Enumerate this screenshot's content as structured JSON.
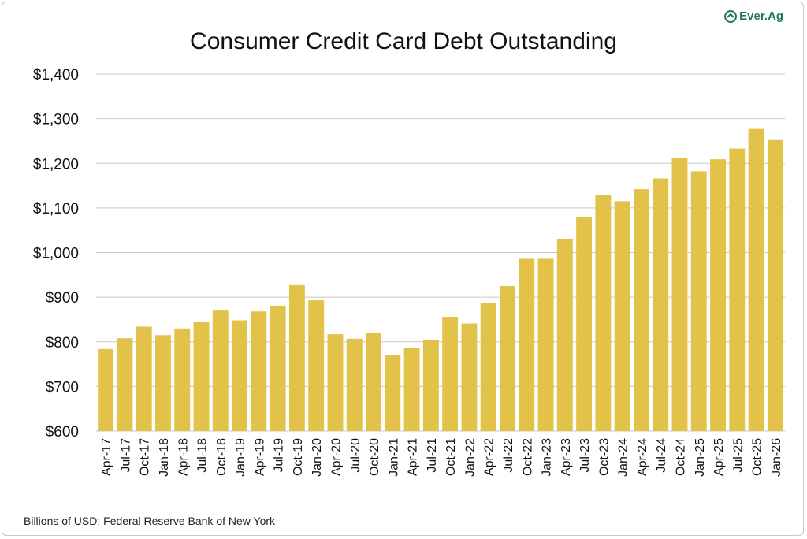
{
  "title": "Consumer Credit Card Debt Outstanding",
  "caption": "Billions of USD; Federal Reserve Bank of New York",
  "logo": {
    "text": "Ever.Ag",
    "icon": "everag-logo-icon",
    "color": "#1f7a5a"
  },
  "colors": {
    "bar": "#e3c24a",
    "grid": "#c8c8c8",
    "axis_text": "#111111"
  },
  "chart_data": {
    "type": "bar",
    "title": "Consumer Credit Card Debt Outstanding",
    "xlabel": "",
    "ylabel": "",
    "ylim": [
      600,
      1400
    ],
    "yticks": [
      600,
      700,
      800,
      900,
      1000,
      1100,
      1200,
      1300,
      1400
    ],
    "ytick_labels": [
      "$600",
      "$700",
      "$800",
      "$900",
      "$1,000",
      "$1,100",
      "$1,200",
      "$1,300",
      "$1,400"
    ],
    "grid": true,
    "legend": "none",
    "categories": [
      "Apr-17",
      "Jul-17",
      "Oct-17",
      "Jan-18",
      "Apr-18",
      "Jul-18",
      "Oct-18",
      "Jan-19",
      "Apr-19",
      "Jul-19",
      "Oct-19",
      "Jan-20",
      "Apr-20",
      "Jul-20",
      "Oct-20",
      "Jan-21",
      "Apr-21",
      "Jul-21",
      "Oct-21",
      "Jan-22",
      "Apr-22",
      "Jul-22",
      "Oct-22",
      "Jan-23",
      "Apr-23",
      "Jul-23",
      "Oct-23",
      "Jan-24",
      "Apr-24",
      "Jul-24",
      "Oct-24",
      "Jan-25",
      "Apr-25",
      "Jul-25",
      "Oct-25",
      "Jan-26"
    ],
    "values": [
      784,
      808,
      834,
      815,
      830,
      844,
      870,
      848,
      868,
      881,
      927,
      893,
      817,
      807,
      820,
      770,
      787,
      804,
      856,
      841,
      887,
      925,
      986,
      986,
      1031,
      1080,
      1129,
      1115,
      1142,
      1166,
      1211,
      1182,
      1209,
      1233,
      1277,
      1252
    ]
  }
}
